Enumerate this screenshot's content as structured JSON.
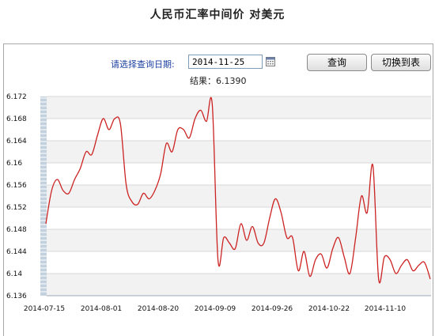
{
  "header": {
    "title": "人民币汇率中间价  对美元"
  },
  "query": {
    "label": "请选择查询日期:",
    "date_value": "2014-11-25",
    "query_button": "查询",
    "switch_button": "切换到表",
    "result_label": "结果：",
    "result_value": "6.1390"
  },
  "chart_data": {
    "type": "line",
    "title": "",
    "xlabel": "",
    "ylabel": "",
    "ylim": [
      6.136,
      6.172
    ],
    "yticks": [
      "6.172",
      "6.168",
      "6.164",
      "6.16",
      "6.156",
      "6.152",
      "6.148",
      "6.144",
      "6.14",
      "6.136"
    ],
    "xtick_labels": [
      "2014-07-15",
      "2014-08-01",
      "2014-08-20",
      "2014-09-09",
      "2014-09-26",
      "2014-10-22",
      "2014-11-10"
    ],
    "grid": true,
    "line_color": "#cc2222",
    "series": [
      {
        "values": [
          6.149,
          6.155,
          6.157,
          6.155,
          6.1545,
          6.157,
          6.159,
          6.162,
          6.1615,
          6.165,
          6.168,
          6.166,
          6.168,
          6.167,
          6.156,
          6.153,
          6.1525,
          6.1545,
          6.1535,
          6.155,
          6.158,
          6.1635,
          6.162,
          6.166,
          6.166,
          6.1645,
          6.168,
          6.1695,
          6.1675,
          6.1705,
          6.1425,
          6.1465,
          6.1455,
          6.1445,
          6.149,
          6.146,
          6.1485,
          6.1455,
          6.1455,
          6.15,
          6.1535,
          6.151,
          6.1465,
          6.1465,
          6.1405,
          6.144,
          6.1395,
          6.1425,
          6.1435,
          6.141,
          6.1445,
          6.1465,
          6.143,
          6.14,
          6.1465,
          6.154,
          6.151,
          6.1595,
          6.139,
          6.143,
          6.1425,
          6.14,
          6.1415,
          6.1425,
          6.1405,
          6.1415,
          6.142,
          6.139
        ]
      }
    ]
  }
}
